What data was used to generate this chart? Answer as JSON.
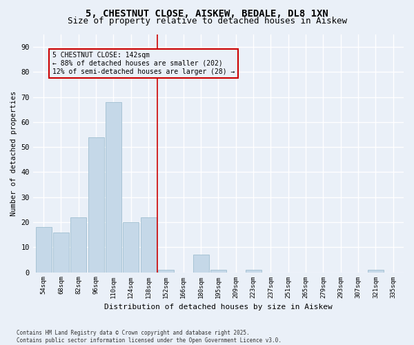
{
  "title": "5, CHESTNUT CLOSE, AISKEW, BEDALE, DL8 1XN",
  "subtitle": "Size of property relative to detached houses in Aiskew",
  "xlabel": "Distribution of detached houses by size in Aiskew",
  "ylabel": "Number of detached properties",
  "categories": [
    "54sqm",
    "68sqm",
    "82sqm",
    "96sqm",
    "110sqm",
    "124sqm",
    "138sqm",
    "152sqm",
    "166sqm",
    "180sqm",
    "195sqm",
    "209sqm",
    "223sqm",
    "237sqm",
    "251sqm",
    "265sqm",
    "279sqm",
    "293sqm",
    "307sqm",
    "321sqm",
    "335sqm"
  ],
  "values": [
    18,
    16,
    22,
    54,
    68,
    20,
    22,
    1,
    0,
    7,
    1,
    0,
    1,
    0,
    0,
    0,
    0,
    0,
    0,
    1,
    0
  ],
  "bar_color": "#c5d8e8",
  "bar_edge_color": "#a0bfd0",
  "vline_x_index": 6.5,
  "vline_color": "#cc0000",
  "annotation_text": "5 CHESTNUT CLOSE: 142sqm\n← 88% of detached houses are smaller (202)\n12% of semi-detached houses are larger (28) →",
  "annotation_box_color": "#cc0000",
  "ylim": [
    0,
    95
  ],
  "yticks": [
    0,
    10,
    20,
    30,
    40,
    50,
    60,
    70,
    80,
    90
  ],
  "background_color": "#eaf0f8",
  "grid_color": "#ffffff",
  "footer": "Contains HM Land Registry data © Crown copyright and database right 2025.\nContains public sector information licensed under the Open Government Licence v3.0.",
  "title_fontsize": 10,
  "subtitle_fontsize": 9
}
